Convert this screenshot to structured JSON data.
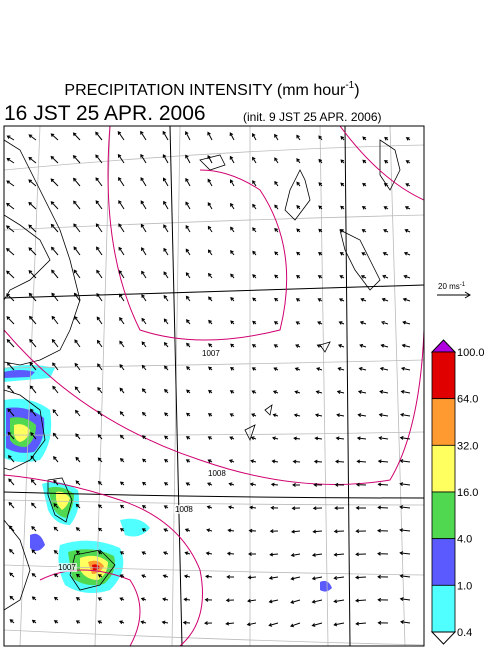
{
  "header": {
    "title": "PRECIPITATION INTENSITY (mm hour",
    "title_sup": "-1",
    "title_end": ")",
    "valid": "16 JST 25 APR. 2006",
    "init": "(init. 9 JST 25 APR. 2006)"
  },
  "scale": {
    "label": "20 ms",
    "sup": "-1"
  },
  "colorbar": {
    "labels": [
      "100.0",
      "64.0",
      "32.0",
      "16.0",
      "4.0",
      "1.0",
      "0.4"
    ],
    "colors": [
      "#e00000",
      "#ff9a30",
      "#ffff60",
      "#50d850",
      "#5a5aff",
      "#50ffff"
    ],
    "top_color": "#b000e0"
  },
  "isobars": {
    "labels": [
      "1007",
      "1008",
      "1008",
      "1007"
    ]
  }
}
